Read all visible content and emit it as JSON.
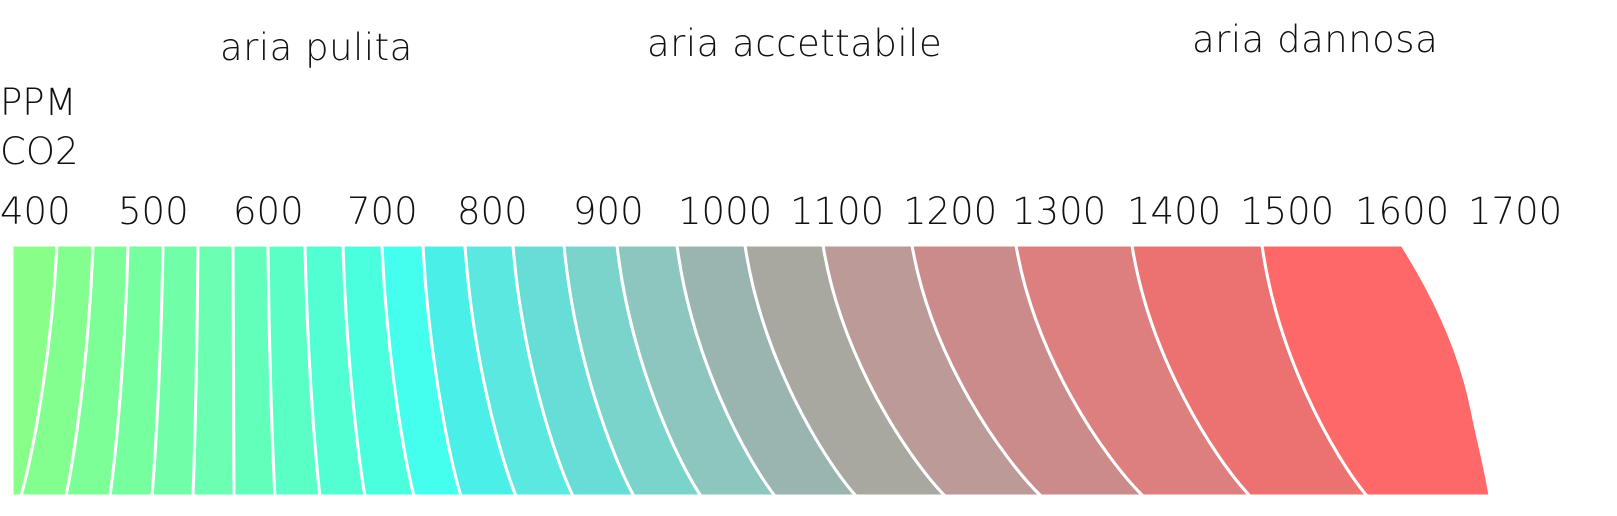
{
  "title_unit": {
    "line1": "PPM",
    "line2": "CO2"
  },
  "zones": [
    {
      "label": "aria pulita"
    },
    {
      "label": "aria accettabile"
    },
    {
      "label": "aria dannosa"
    }
  ],
  "chart_data": {
    "type": "gradient-scale",
    "unit": "PPM CO2",
    "ticks": [
      "400",
      "500",
      "600",
      "700",
      "800",
      "900",
      "1000",
      "1100",
      "1200",
      "1300",
      "1400",
      "1500",
      "1600",
      "1700"
    ],
    "bands": [
      {
        "from": 400,
        "color": "#88ff88"
      },
      {
        "from": 450,
        "color": "#82ff8f"
      },
      {
        "from": 500,
        "color": "#7cff97"
      },
      {
        "from": 550,
        "color": "#76ff9f"
      },
      {
        "from": 600,
        "color": "#70ffa8"
      },
      {
        "from": 650,
        "color": "#6affb1"
      },
      {
        "from": 700,
        "color": "#62ffbb"
      },
      {
        "from": 750,
        "color": "#5affc6"
      },
      {
        "from": 800,
        "color": "#52ffd2"
      },
      {
        "from": 850,
        "color": "#4affde"
      },
      {
        "from": 900,
        "color": "#45ffee"
      },
      {
        "from": 950,
        "color": "#4af0e8"
      },
      {
        "from": 1000,
        "color": "#5ae8e0"
      },
      {
        "from": 1050,
        "color": "#66ddd6"
      },
      {
        "from": 1100,
        "color": "#7bd4cc"
      },
      {
        "from": 1150,
        "color": "#8cc6be"
      },
      {
        "from": 1200,
        "color": "#9ab5b0"
      },
      {
        "from": 1250,
        "color": "#a8a8a0"
      },
      {
        "from": 1300,
        "color": "#bb9a98"
      },
      {
        "from": 1350,
        "color": "#cc8b8b"
      },
      {
        "from": 1400,
        "color": "#dd7f7f"
      },
      {
        "from": 1450,
        "color": "#ec7272"
      },
      {
        "from": 1500,
        "color": "#ff6868"
      }
    ]
  }
}
